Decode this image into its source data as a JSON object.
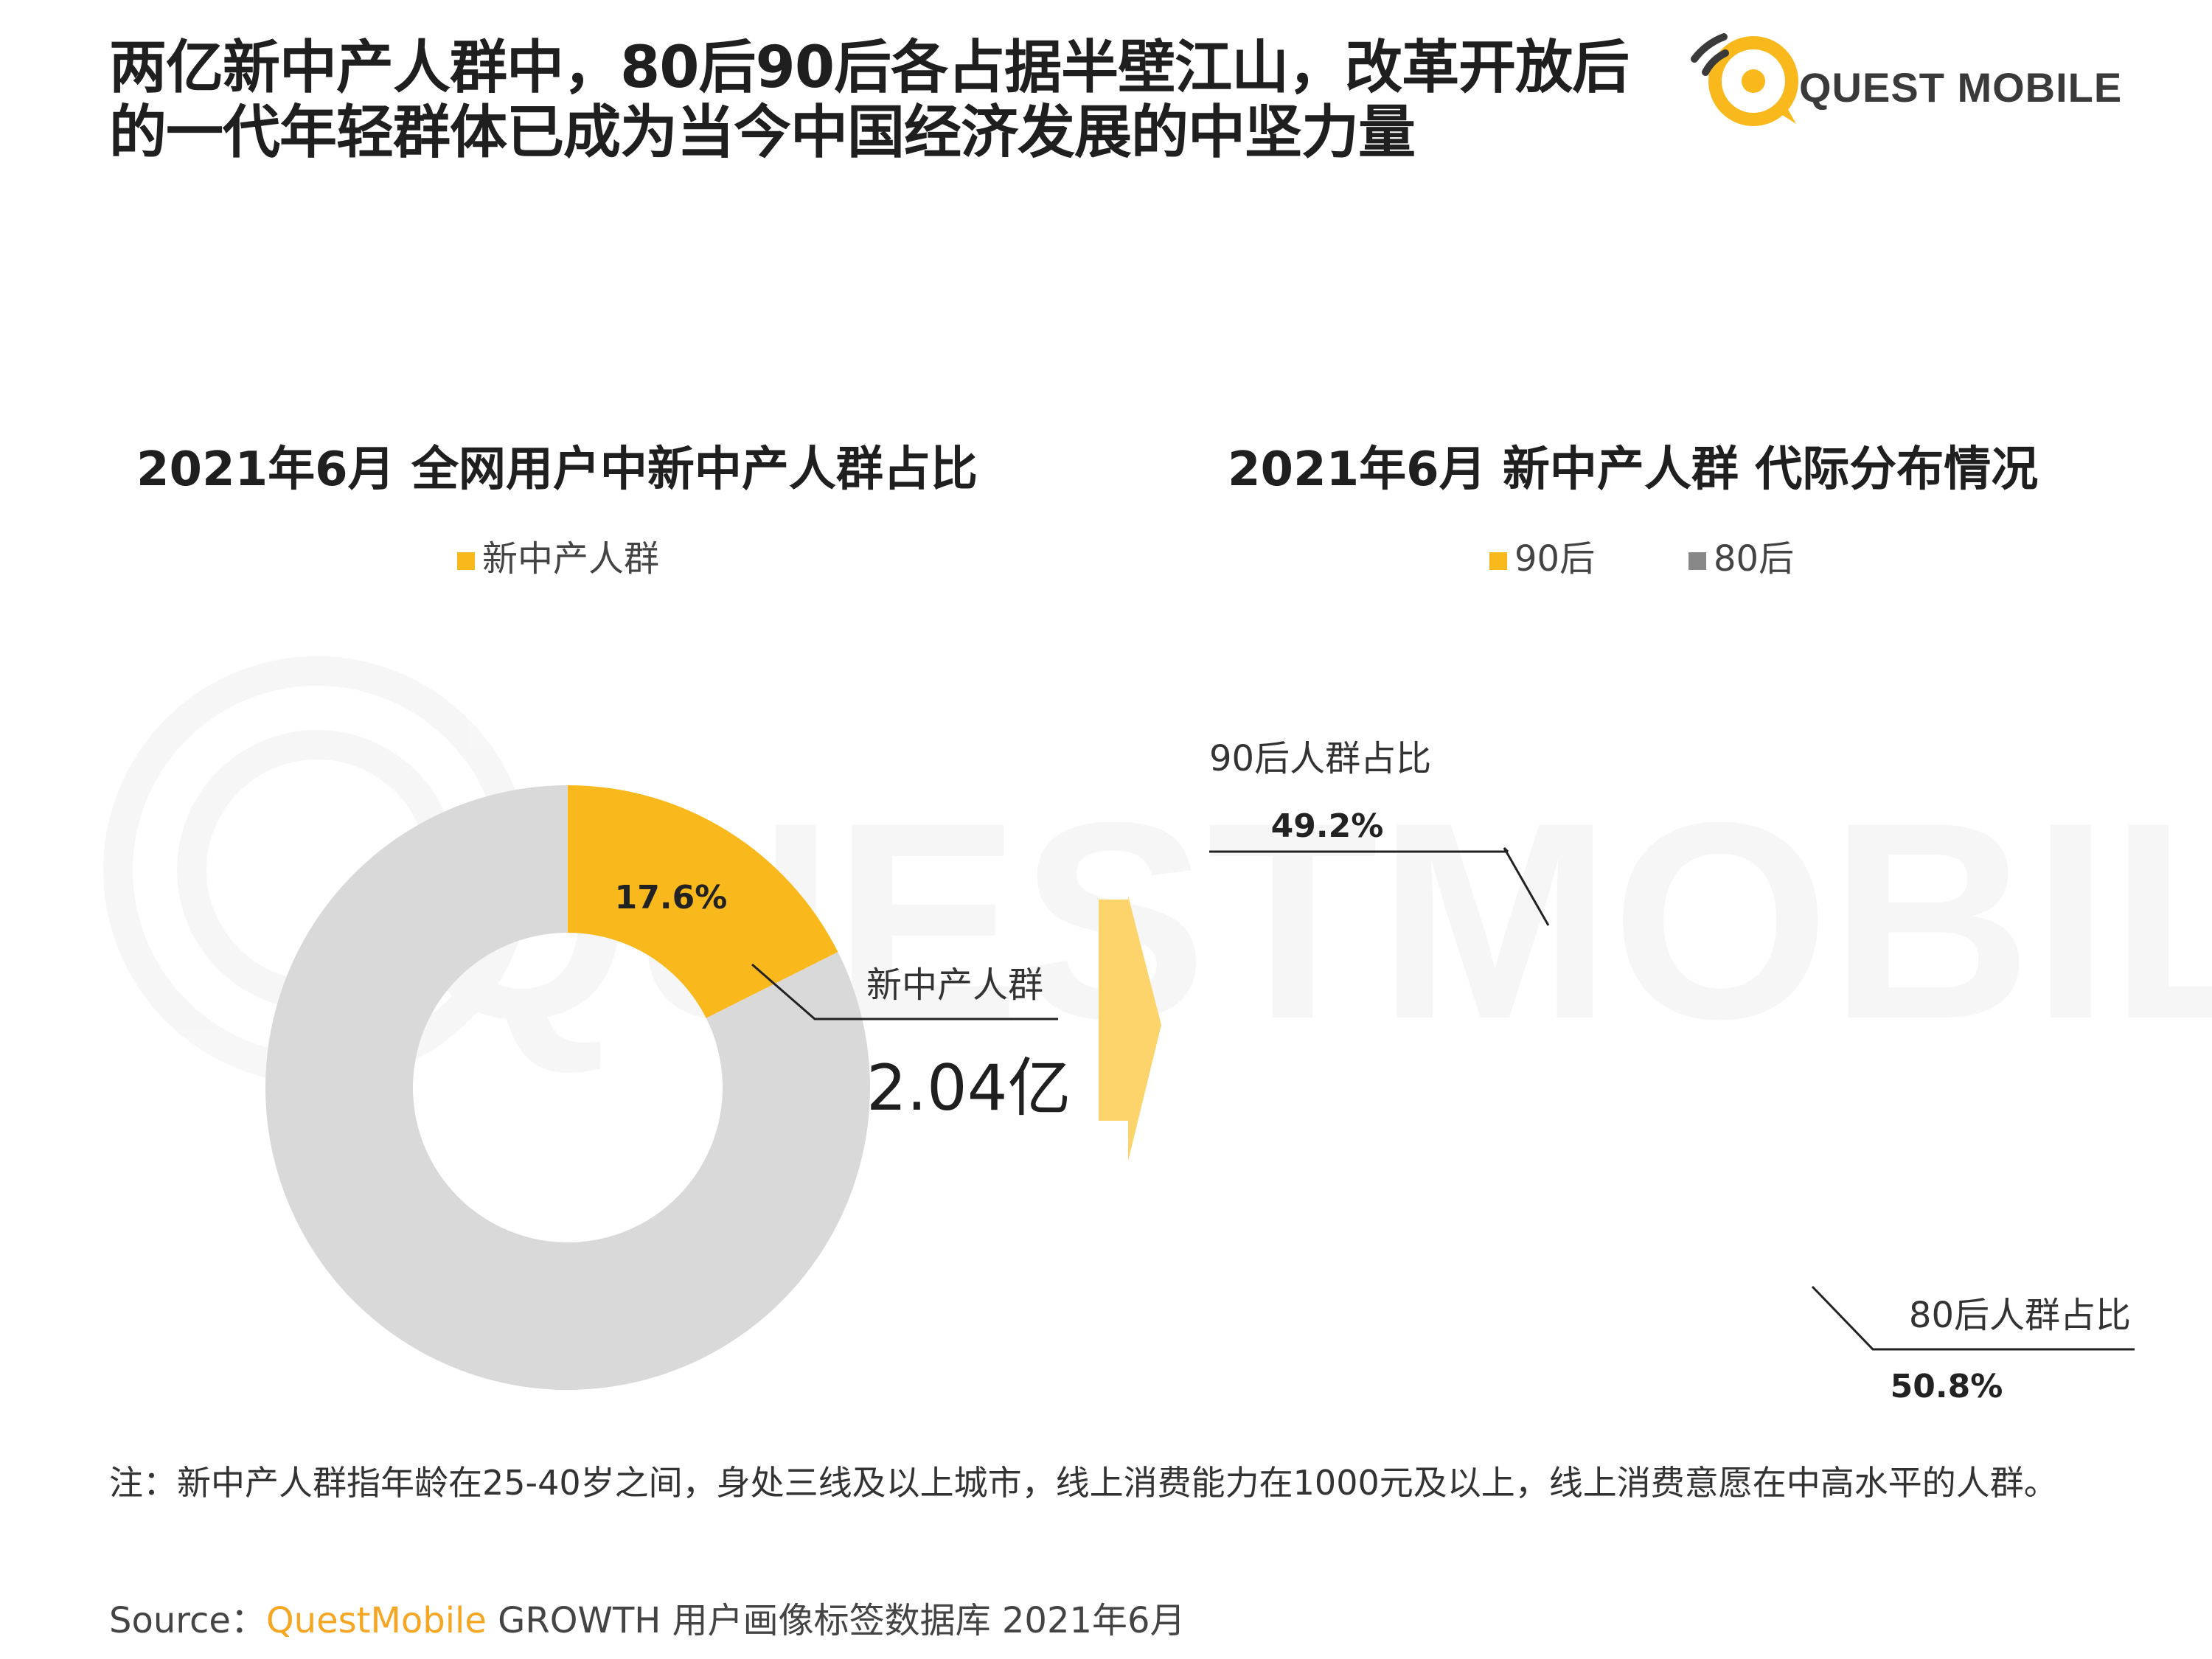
{
  "title": "两亿新中产人群中，80后90后各占据半壁江山，改革开放后的一代年轻群体已成为当今中国经济发展的中坚力量",
  "logo": {
    "text": "QUEST MOBILE",
    "icon": "questmobile-logo-icon"
  },
  "watermark": "QUESTMOBILE",
  "colors": {
    "yellow": "#f9b91c",
    "light_gray": "#d9d9d9",
    "dark_gray": "#888888",
    "arrow": "#fcd46b",
    "brand": "#f5a623"
  },
  "left": {
    "title": "2021年6月 全网用户中新中产人群占比",
    "legend": "新中产人群",
    "callout_label": "新中产人群",
    "callout_value": "2.04亿"
  },
  "right": {
    "title": "2021年6月 新中产人群 代际分布情况",
    "legend_90": "90后",
    "legend_80": "80后"
  },
  "chart_data": [
    {
      "type": "pie",
      "title": "2021年6月 全网用户中新中产人群占比",
      "series": [
        {
          "name": "新中产人群",
          "value": 17.6,
          "label": "17.6%"
        },
        {
          "name": "",
          "value": 82.4,
          "label": ""
        }
      ]
    },
    {
      "type": "pie",
      "title": "2021年6月 新中产人群 代际分布情况",
      "series": [
        {
          "name": "90后",
          "value": 49.2,
          "label": "49.2%",
          "callout": "90后人群占比"
        },
        {
          "name": "80后",
          "value": 50.8,
          "label": "50.8%",
          "callout": "80后人群占比"
        }
      ]
    }
  ],
  "note": "注：新中产人群指年龄在25-40岁之间，身处三线及以上城市，线上消费能力在1000元及以上，线上消费意愿在中高水平的人群。",
  "source": {
    "prefix": "Source：",
    "brand": "QuestMobile",
    "text": " GROWTH 用户画像标签数据库 2021年6月"
  }
}
